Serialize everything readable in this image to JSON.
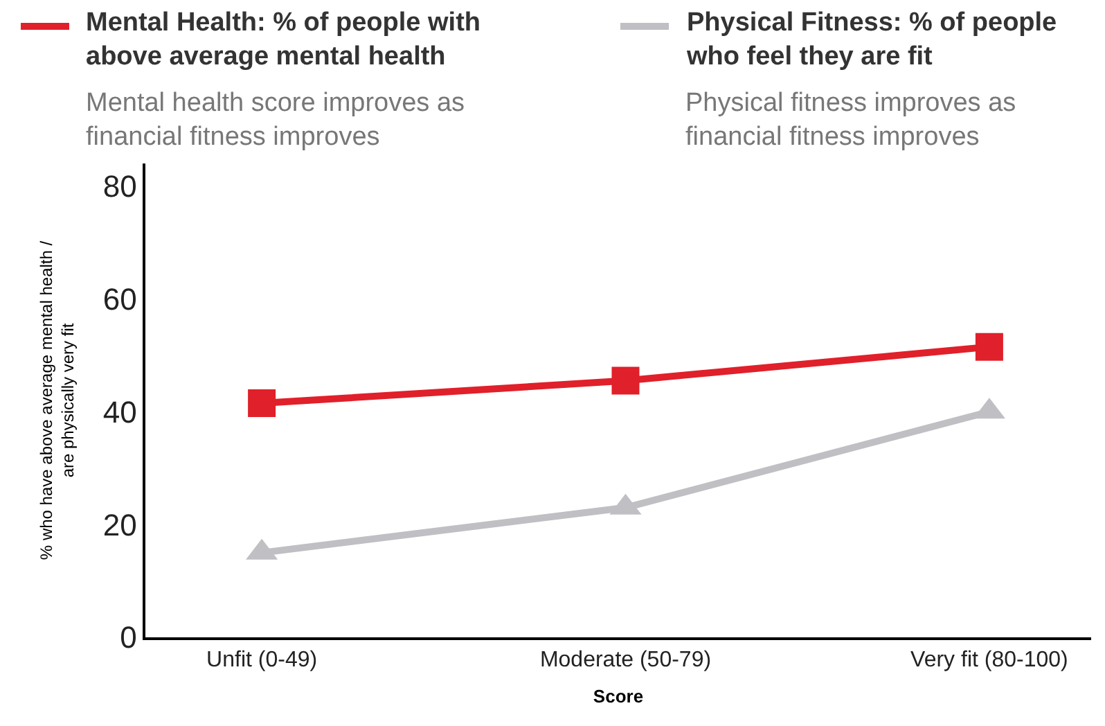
{
  "chart_data": {
    "type": "line",
    "categories": [
      "Unfit (0-49)",
      "Moderate (50-79)",
      "Very fit (80-100)"
    ],
    "series": [
      {
        "name": "Mental Health: % of people with above average mental health",
        "color": "#e0202a",
        "marker": "square",
        "values": [
          41.5,
          45.5,
          51.5
        ]
      },
      {
        "name": "Physical Fitness: % of people who feel they are fit",
        "color": "#bfbfc4",
        "marker": "triangle",
        "values": [
          15,
          23,
          40
        ]
      }
    ],
    "annotations": [
      "Mental health score improves as financial fitness improves",
      "Physical fitness improves as financial fitness improves"
    ],
    "xlabel": "Score",
    "ylabel": "% who have above average mental health / are physically very fit",
    "ylim": [
      0,
      84
    ],
    "yticks": [
      0,
      20,
      40,
      60,
      80
    ],
    "legend": "top",
    "line_style": "solid"
  }
}
